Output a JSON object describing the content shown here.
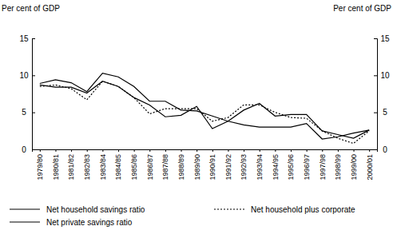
{
  "chart_data": {
    "type": "line",
    "y_label": "Per cent of GDP",
    "y2_label": "Per cent of GDP",
    "categories": [
      "1979/80",
      "1980/81",
      "1981/82",
      "1982/83",
      "1983/84",
      "1984/85",
      "1985/86",
      "1986/87",
      "1987/88",
      "1988/89",
      "1989/90",
      "1990/91",
      "1991/92",
      "1992/93",
      "1993/94",
      "1994/95",
      "1995/96",
      "1996/97",
      "1997/98",
      "1998/99",
      "1999/00",
      "2000/01"
    ],
    "series": [
      {
        "name": "Net household savings ratio",
        "color": "#000000",
        "line_style": "solid",
        "values": [
          8.9,
          9.4,
          9.0,
          7.8,
          10.3,
          9.8,
          8.5,
          6.5,
          6.5,
          5.3,
          5.2,
          4.5,
          3.8,
          3.3,
          3.0,
          3.0,
          3.0,
          3.5,
          1.4,
          1.7,
          2.2,
          2.6
        ]
      },
      {
        "name": "Net household plus corporate",
        "color": "#000000",
        "line_style": "dotted",
        "values": [
          8.5,
          8.7,
          8.2,
          6.7,
          9.2,
          8.5,
          7.0,
          4.8,
          5.5,
          5.5,
          5.5,
          3.8,
          4.3,
          6.0,
          6.0,
          5.0,
          4.3,
          4.2,
          2.5,
          1.5,
          0.8,
          2.5
        ]
      },
      {
        "name": "Net private savings ratio",
        "color": "#000000",
        "line_style": "solid",
        "values": [
          8.7,
          8.4,
          8.4,
          7.6,
          9.2,
          8.5,
          7.0,
          6.0,
          4.4,
          4.6,
          5.8,
          2.8,
          3.8,
          5.3,
          6.2,
          4.5,
          4.7,
          4.7,
          2.5,
          2.0,
          1.5,
          2.6
        ]
      }
    ],
    "ylim": [
      0,
      15
    ],
    "yticks": [
      0,
      5,
      10,
      15
    ],
    "y2lim": [
      0,
      15
    ],
    "y2ticks": [
      0,
      5,
      10,
      15
    ],
    "grid": false,
    "legend": "bottom"
  }
}
